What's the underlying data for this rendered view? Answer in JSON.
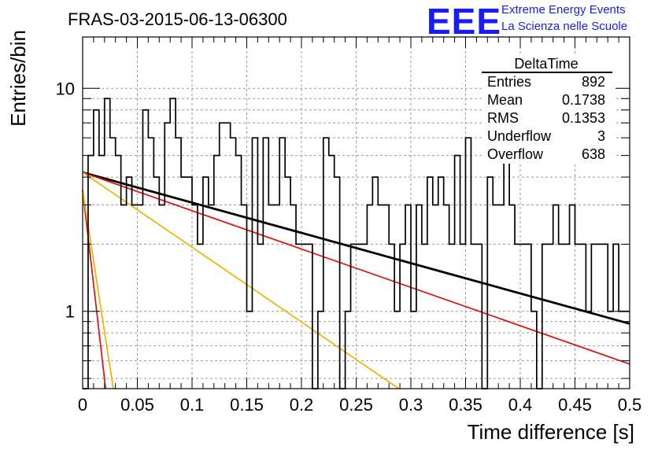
{
  "header": {
    "run_title": "FRAS-03-2015-06-13-06300",
    "logo_text": "EEE",
    "logo_line1": "Extreme Energy Events",
    "logo_line2": "La Scienza nelle Scuole",
    "logo_color": "#1a1aff"
  },
  "stats": {
    "name": "DeltaTime",
    "rows": [
      {
        "label": "Entries",
        "value": "892"
      },
      {
        "label": "Mean",
        "value": "0.1738"
      },
      {
        "label": "RMS",
        "value": "0.1353"
      },
      {
        "label": "Underflow",
        "value": "3"
      },
      {
        "label": "Overflow",
        "value": "638"
      }
    ]
  },
  "chart_data": {
    "type": "line",
    "title": "FRAS-03-2015-06-13-06300",
    "xlabel": "Time difference [s]",
    "ylabel": "Entries/bin",
    "xlim": [
      0,
      0.5
    ],
    "ylim": [
      0.45,
      17
    ],
    "y_scale": "log",
    "grid": true,
    "x_ticks": [
      "0",
      "0.05",
      "0.1",
      "0.15",
      "0.2",
      "0.25",
      "0.3",
      "0.35",
      "0.4",
      "0.45",
      "0.5"
    ],
    "y_ticks": [
      "1",
      "10"
    ],
    "histogram": {
      "bin_width": 0.005,
      "x_start": 0,
      "counts": [
        0,
        5,
        8,
        5,
        9,
        6,
        5,
        3,
        4,
        3,
        3,
        8,
        6,
        4,
        3,
        7,
        9,
        6,
        4,
        4,
        3,
        2,
        4,
        3,
        5,
        7,
        7,
        6,
        5,
        3,
        1,
        6,
        2,
        6,
        3,
        3,
        6,
        4,
        3,
        2,
        2,
        2,
        0,
        1,
        6,
        5,
        4,
        0,
        1,
        2,
        2,
        2,
        3,
        4,
        3,
        3,
        2,
        1,
        2,
        3,
        1,
        3,
        2,
        4,
        3,
        4,
        3,
        2,
        5,
        2,
        6,
        2,
        2,
        0,
        4,
        3,
        3,
        5,
        3,
        2,
        2,
        2,
        1,
        0,
        2,
        2,
        3,
        2,
        2,
        3,
        2,
        2,
        1,
        2,
        2,
        2,
        1,
        2,
        1,
        1
      ],
      "color": "#000000"
    },
    "fits": [
      {
        "points": [
          [
            0,
            4.2
          ],
          [
            0.5,
            0.88
          ]
        ],
        "color": "#000000"
      },
      {
        "points": [
          [
            0,
            4.2
          ],
          [
            0.5,
            0.58
          ]
        ],
        "color": "#e01010"
      },
      {
        "points": [
          [
            0,
            4.2
          ],
          [
            0.289,
            0.45
          ]
        ],
        "color": "#f0b400"
      },
      {
        "points": [
          [
            0,
            3.5
          ],
          [
            0.021,
            0.45
          ]
        ],
        "color": "#e01010"
      },
      {
        "points": [
          [
            0,
            3.5
          ],
          [
            0.028,
            0.45
          ]
        ],
        "color": "#f0b400"
      }
    ]
  }
}
